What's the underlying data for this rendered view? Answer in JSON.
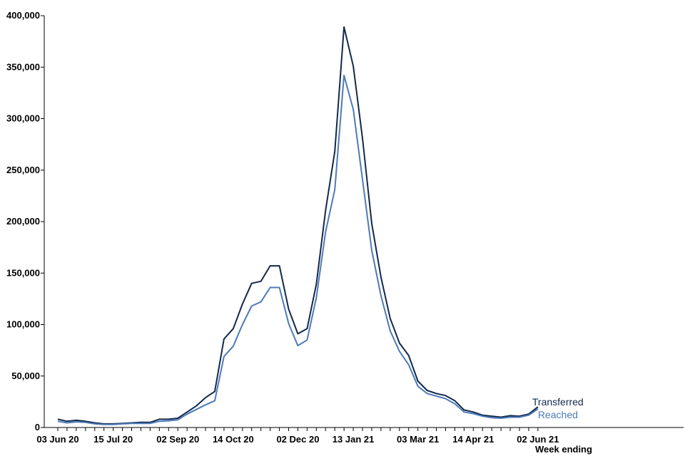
{
  "chart_data": {
    "type": "line",
    "title": "",
    "xlabel": "Week ending",
    "ylabel": "",
    "ylim": [
      0,
      400000
    ],
    "grid": false,
    "yticks": [
      0,
      50000,
      100000,
      150000,
      200000,
      250000,
      300000,
      350000,
      400000
    ],
    "ytick_labels": [
      "0",
      "50,000",
      "100,000",
      "150,000",
      "200,000",
      "250,000",
      "300,000",
      "350,000",
      "400,000"
    ],
    "xtick_labels": [
      "03 Jun 20",
      "15 Jul 20",
      "02 Sep 20",
      "14 Oct 20",
      "02 Dec 20",
      "13 Jan 21",
      "03 Mar 21",
      "14 Apr 21",
      "02 Jun 21"
    ],
    "x": [
      "03 Jun 20",
      "10 Jun 20",
      "17 Jun 20",
      "24 Jun 20",
      "01 Jul 20",
      "08 Jul 20",
      "15 Jul 20",
      "22 Jul 20",
      "29 Jul 20",
      "05 Aug 20",
      "12 Aug 20",
      "19 Aug 20",
      "26 Aug 20",
      "02 Sep 20",
      "09 Sep 20",
      "16 Sep 20",
      "23 Sep 20",
      "30 Sep 20",
      "07 Oct 20",
      "14 Oct 20",
      "21 Oct 20",
      "28 Oct 20",
      "04 Nov 20",
      "11 Nov 20",
      "18 Nov 20",
      "25 Nov 20",
      "02 Dec 20",
      "09 Dec 20",
      "16 Dec 20",
      "23 Dec 20",
      "30 Dec 20",
      "06 Jan 21",
      "13 Jan 21",
      "20 Jan 21",
      "27 Jan 21",
      "03 Feb 21",
      "10 Feb 21",
      "17 Feb 21",
      "24 Feb 21",
      "03 Mar 21",
      "10 Mar 21",
      "17 Mar 21",
      "24 Mar 21",
      "31 Mar 21",
      "07 Apr 21",
      "14 Apr 21",
      "21 Apr 21",
      "28 Apr 21",
      "05 May 21",
      "12 May 21",
      "19 May 21",
      "26 May 21",
      "02 Jun 21"
    ],
    "series": [
      {
        "name": "Transferred",
        "color": "#12284c",
        "values": [
          8000,
          6000,
          7000,
          6000,
          4500,
          3500,
          3500,
          4000,
          4500,
          5000,
          5000,
          8000,
          8000,
          9000,
          15000,
          21000,
          29000,
          35000,
          86000,
          96000,
          120000,
          140000,
          142000,
          157000,
          157000,
          115000,
          91000,
          96000,
          139000,
          211000,
          268000,
          389000,
          351000,
          281000,
          198000,
          146000,
          106000,
          82000,
          70000,
          45000,
          36000,
          33000,
          31000,
          26000,
          17000,
          15000,
          12000,
          11000,
          10000,
          11500,
          11000,
          13000,
          20000
        ]
      },
      {
        "name": "Reached",
        "color": "#4d7ab8",
        "values": [
          6000,
          4500,
          5500,
          5000,
          3500,
          3000,
          3000,
          3500,
          4000,
          4000,
          4000,
          6000,
          6500,
          7500,
          13000,
          17500,
          22000,
          26000,
          69000,
          79000,
          100000,
          118000,
          122000,
          136000,
          136000,
          101000,
          79500,
          85000,
          126000,
          190000,
          231000,
          342000,
          309000,
          241000,
          172000,
          128000,
          94000,
          74000,
          61000,
          40000,
          33000,
          30500,
          28000,
          23000,
          15000,
          13500,
          11000,
          9500,
          9000,
          10000,
          10000,
          12000,
          18000
        ]
      }
    ],
    "legend": "labels at line ends"
  }
}
